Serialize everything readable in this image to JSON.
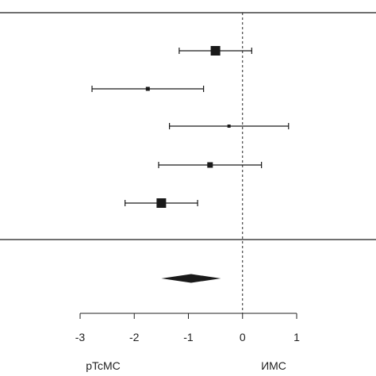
{
  "chart_data": {
    "type": "forest",
    "title": "",
    "xlabel": "",
    "ylabel": "",
    "xlim": [
      -3,
      1
    ],
    "reference_line": 0,
    "x_ticks": [
      -3,
      -2,
      -1,
      0,
      1
    ],
    "tick_labels": [
      "-3",
      "-2",
      "-1",
      "0",
      "1"
    ],
    "direction_labels": {
      "left": "pTcMC",
      "right": "ИMC"
    },
    "studies": [
      {
        "estimate": -0.5,
        "lower": -1.17,
        "upper": 0.17,
        "weight": "large"
      },
      {
        "estimate": -1.75,
        "lower": -2.78,
        "upper": -0.72,
        "weight": "small"
      },
      {
        "estimate": -0.25,
        "lower": -1.35,
        "upper": 0.85,
        "weight": "smallest"
      },
      {
        "estimate": -0.6,
        "lower": -1.55,
        "upper": 0.35,
        "weight": "medium"
      },
      {
        "estimate": -1.5,
        "lower": -2.17,
        "upper": -0.83,
        "weight": "large"
      }
    ],
    "pooled": {
      "estimate": -0.95,
      "lower": -1.5,
      "upper": -0.4
    },
    "grid": false,
    "legend": "none",
    "colors": {
      "marks": "#1a1a1a",
      "reference": "#222222",
      "frame": "#1a1a1a"
    }
  }
}
